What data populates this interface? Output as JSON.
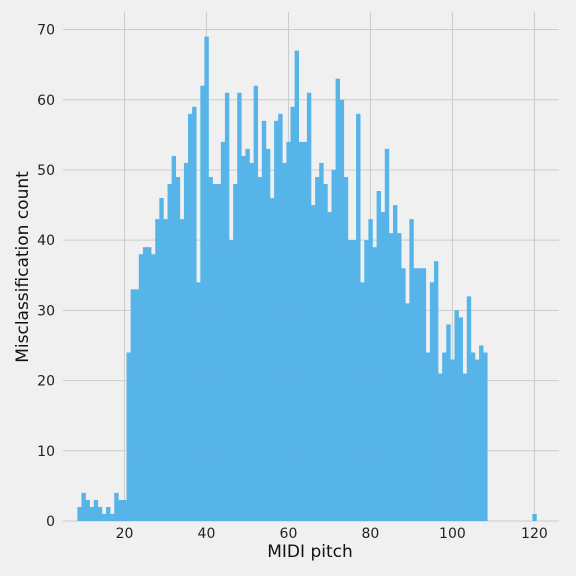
{
  "chart_data": {
    "type": "bar",
    "title": "",
    "xlabel": "MIDI pitch",
    "ylabel": "Misclassification count",
    "xlim": [
      5,
      126
    ],
    "ylim": [
      0,
      72.5
    ],
    "xticks": [
      20,
      40,
      60,
      80,
      100,
      120
    ],
    "yticks": [
      0,
      10,
      20,
      30,
      40,
      50,
      60,
      70
    ],
    "grid": true,
    "bar_color": "#56b4e9",
    "background": "#f0f0f0",
    "bin_width": 1,
    "x": [
      9,
      10,
      11,
      12,
      13,
      14,
      15,
      16,
      17,
      18,
      19,
      20,
      21,
      22,
      23,
      24,
      25,
      26,
      27,
      28,
      29,
      30,
      31,
      32,
      33,
      34,
      35,
      36,
      37,
      38,
      39,
      40,
      41,
      42,
      43,
      44,
      45,
      46,
      47,
      48,
      49,
      50,
      51,
      52,
      53,
      54,
      55,
      56,
      57,
      58,
      59,
      60,
      61,
      62,
      63,
      64,
      65,
      66,
      67,
      68,
      69,
      70,
      71,
      72,
      73,
      74,
      75,
      76,
      77,
      78,
      79,
      80,
      81,
      82,
      83,
      84,
      85,
      86,
      87,
      88,
      89,
      90,
      91,
      92,
      93,
      94,
      95,
      96,
      97,
      98,
      99,
      100,
      101,
      102,
      103,
      104,
      105,
      106,
      107,
      108,
      120
    ],
    "values": [
      2,
      4,
      3,
      2,
      3,
      2,
      1,
      2,
      1,
      4,
      3,
      3,
      24,
      33,
      33,
      38,
      39,
      39,
      38,
      43,
      46,
      43,
      48,
      52,
      49,
      43,
      51,
      58,
      59,
      34,
      62,
      69,
      49,
      48,
      48,
      54,
      61,
      40,
      48,
      61,
      52,
      53,
      51,
      62,
      49,
      57,
      53,
      46,
      57,
      58,
      51,
      54,
      59,
      67,
      54,
      54,
      61,
      45,
      49,
      51,
      48,
      44,
      50,
      63,
      60,
      49,
      40,
      40,
      58,
      34,
      40,
      43,
      39,
      47,
      44,
      53,
      41,
      45,
      41,
      36,
      31,
      43,
      36,
      36,
      36,
      24,
      34,
      37,
      21,
      24,
      28,
      23,
      30,
      29,
      21,
      32,
      24,
      23,
      25,
      24,
      1
    ]
  }
}
